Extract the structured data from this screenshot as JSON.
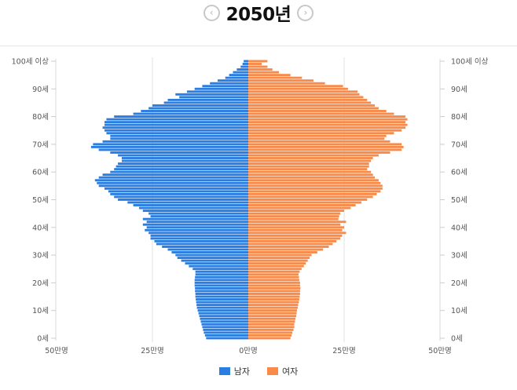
{
  "header": {
    "title": "2050년",
    "prev_icon": "chevron-left-circle-icon",
    "next_icon": "chevron-right-circle-icon",
    "prev_glyph": "‹",
    "next_glyph": "›"
  },
  "chart_data": {
    "type": "bar",
    "orientation": "horizontal-pyramid",
    "title": "2050년",
    "xlim": [
      -50,
      50
    ],
    "x_unit": "만명",
    "x_ticks": [
      {
        "value": -50,
        "label": "50만명"
      },
      {
        "value": -25,
        "label": "25만명"
      },
      {
        "value": 0,
        "label": "0만명"
      },
      {
        "value": 25,
        "label": "25만명"
      },
      {
        "value": 50,
        "label": "50만명"
      }
    ],
    "y_ticks": [
      {
        "age": 0,
        "label": "0세"
      },
      {
        "age": 10,
        "label": "10세"
      },
      {
        "age": 20,
        "label": "20세"
      },
      {
        "age": 30,
        "label": "30세"
      },
      {
        "age": 40,
        "label": "40세"
      },
      {
        "age": 50,
        "label": "50세"
      },
      {
        "age": 60,
        "label": "60세"
      },
      {
        "age": 70,
        "label": "70세"
      },
      {
        "age": 80,
        "label": "80세"
      },
      {
        "age": 90,
        "label": "90세"
      },
      {
        "age": 100,
        "label": "100세 이상"
      }
    ],
    "grid": "vertical at ±25",
    "legend_position": "bottom",
    "series": [
      {
        "name": "남자",
        "color": "#2a7de1",
        "side": "left",
        "values": [
          11,
          11.3,
          11.6,
          11.8,
          12,
          12.2,
          12.4,
          12.6,
          12.8,
          13,
          13.2,
          13.4,
          13.5,
          13.6,
          13.7,
          13.8,
          13.8,
          13.9,
          13.9,
          14,
          14,
          14,
          13.9,
          13.8,
          13.8,
          14.5,
          15.5,
          16.5,
          17.5,
          18.5,
          19,
          20,
          21,
          22.5,
          24,
          24.5,
          25.5,
          25.5,
          26,
          27,
          26.5,
          27.5,
          26.5,
          27.5,
          25.5,
          26,
          27.5,
          28.5,
          30,
          31.5,
          34,
          35,
          36,
          36.5,
          37.5,
          39,
          39.5,
          40,
          39,
          38,
          36,
          35,
          34.5,
          34,
          33,
          33,
          34,
          36,
          39,
          41,
          40.5,
          38,
          36,
          36,
          37,
          37.5,
          38,
          37.5,
          37.5,
          37,
          35,
          30,
          28,
          26,
          25,
          22,
          21,
          18,
          19,
          16,
          14,
          12,
          10,
          8,
          6,
          5,
          4,
          3,
          2,
          1.5,
          1.2
        ]
      },
      {
        "name": "여자",
        "color": "#f88b4a",
        "side": "right",
        "values": [
          11,
          11.3,
          11.5,
          11.8,
          12,
          12,
          12.2,
          12.3,
          12.5,
          12.6,
          12.7,
          12.9,
          13,
          13.2,
          13.3,
          13.4,
          13.5,
          13.5,
          13.6,
          13.5,
          13.5,
          13.3,
          13.2,
          13.1,
          13.4,
          13.9,
          14.5,
          15,
          15.5,
          16,
          16.5,
          18,
          19.5,
          21,
          22,
          23,
          24,
          24.5,
          25.5,
          24.5,
          25,
          24,
          25.5,
          23.5,
          23.7,
          24,
          25,
          26.7,
          28,
          29.5,
          31,
          32.5,
          33.5,
          34.5,
          35,
          35,
          34.5,
          34,
          33,
          32.5,
          32,
          31,
          31.5,
          31.5,
          32,
          32.5,
          34,
          37,
          40,
          40.5,
          40,
          37,
          35.5,
          36,
          38,
          40,
          41,
          41.5,
          41,
          41.5,
          41,
          38,
          36,
          34,
          33,
          32,
          31,
          30,
          29,
          28.5,
          26,
          24.7,
          20,
          17,
          14,
          11,
          8,
          6.3,
          5,
          3.5,
          5
        ]
      }
    ]
  },
  "legend": [
    {
      "label": "남자",
      "color": "#2a7de1"
    },
    {
      "label": "여자",
      "color": "#f88b4a"
    }
  ]
}
